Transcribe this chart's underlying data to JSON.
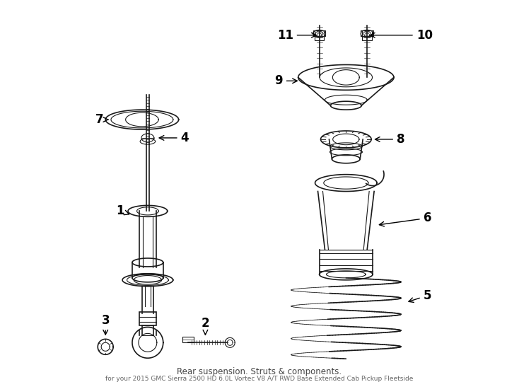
{
  "bg_color": "#ffffff",
  "line_color": "#1a1a1a",
  "label_color": "#000000",
  "title": "Rear suspension. Struts & components.",
  "subtitle": "for your 2015 GMC Sierra 2500 HD 6.0L Vortec V8 A/T RWD Base Extended Cab Pickup Fleetside",
  "figsize": [
    7.34,
    5.4
  ],
  "dpi": 100
}
